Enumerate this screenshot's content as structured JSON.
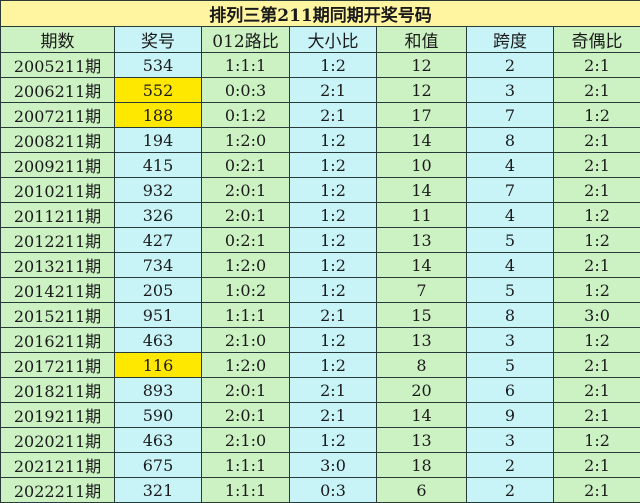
{
  "title": "排列三第211期同期开奖号码",
  "headers": [
    "期数",
    "奖号",
    "012路比",
    "大小比",
    "和值",
    "跨度",
    "奇偶比"
  ],
  "highlight_color": "#FFE800",
  "rows": [
    {
      "cells": [
        "2005211期",
        "534",
        "1:1:1",
        "1:2",
        "12",
        "2",
        "2:1"
      ],
      "highlight": false
    },
    {
      "cells": [
        "2006211期",
        "552",
        "0:0:3",
        "2:1",
        "12",
        "3",
        "2:1"
      ],
      "highlight": true
    },
    {
      "cells": [
        "2007211期",
        "188",
        "0:1:2",
        "2:1",
        "17",
        "7",
        "1:2"
      ],
      "highlight": true
    },
    {
      "cells": [
        "2008211期",
        "194",
        "1:2:0",
        "1:2",
        "14",
        "8",
        "2:1"
      ],
      "highlight": false
    },
    {
      "cells": [
        "2009211期",
        "415",
        "0:2:1",
        "1:2",
        "10",
        "4",
        "2:1"
      ],
      "highlight": false
    },
    {
      "cells": [
        "2010211期",
        "932",
        "2:0:1",
        "1:2",
        "14",
        "7",
        "2:1"
      ],
      "highlight": false
    },
    {
      "cells": [
        "2011211期",
        "326",
        "2:0:1",
        "1:2",
        "11",
        "4",
        "1:2"
      ],
      "highlight": false
    },
    {
      "cells": [
        "2012211期",
        "427",
        "0:2:1",
        "1:2",
        "13",
        "5",
        "1:2"
      ],
      "highlight": false
    },
    {
      "cells": [
        "2013211期",
        "734",
        "1:2:0",
        "1:2",
        "14",
        "4",
        "2:1"
      ],
      "highlight": false
    },
    {
      "cells": [
        "2014211期",
        "205",
        "1:0:2",
        "1:2",
        "7",
        "5",
        "1:2"
      ],
      "highlight": false
    },
    {
      "cells": [
        "2015211期",
        "951",
        "1:1:1",
        "2:1",
        "15",
        "8",
        "3:0"
      ],
      "highlight": false
    },
    {
      "cells": [
        "2016211期",
        "463",
        "2:1:0",
        "1:2",
        "13",
        "3",
        "1:2"
      ],
      "highlight": false
    },
    {
      "cells": [
        "2017211期",
        "116",
        "1:2:0",
        "1:2",
        "8",
        "5",
        "2:1"
      ],
      "highlight": true
    },
    {
      "cells": [
        "2018211期",
        "893",
        "2:0:1",
        "2:1",
        "20",
        "6",
        "2:1"
      ],
      "highlight": false
    },
    {
      "cells": [
        "2019211期",
        "590",
        "2:0:1",
        "2:1",
        "14",
        "9",
        "2:1"
      ],
      "highlight": false
    },
    {
      "cells": [
        "2020211期",
        "463",
        "2:1:0",
        "1:2",
        "13",
        "3",
        "1:2"
      ],
      "highlight": false
    },
    {
      "cells": [
        "2021211期",
        "675",
        "1:1:1",
        "3:0",
        "18",
        "2",
        "2:1"
      ],
      "highlight": false
    },
    {
      "cells": [
        "2022211期",
        "321",
        "1:1:1",
        "0:3",
        "6",
        "2",
        "2:1"
      ],
      "highlight": false
    }
  ]
}
